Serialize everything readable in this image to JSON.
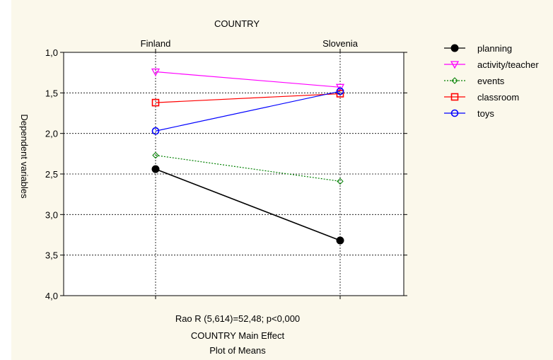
{
  "chart_data": {
    "type": "line",
    "title": "COUNTRY",
    "categories": [
      "Finland",
      "Slovenia"
    ],
    "ylabel": "Dependent variables",
    "ylim": [
      1.0,
      4.0
    ],
    "y_inverted": true,
    "yticks": [
      "1,0",
      "1,5",
      "2,0",
      "2,5",
      "3,0",
      "3,5",
      "4,0"
    ],
    "grid": "horizontal dashed",
    "legend_position": "right",
    "footer": [
      "Rao R (5,614)=52,48; p<0,000",
      "COUNTRY Main Effect",
      "Plot of Means"
    ],
    "series": [
      {
        "name": "planning",
        "values": [
          2.44,
          3.32
        ],
        "color": "#000000",
        "marker": "filled-circle",
        "dash": "solid"
      },
      {
        "name": "activity/teacher",
        "values": [
          1.24,
          1.43
        ],
        "color": "#ff00ff",
        "marker": "triangle-down",
        "dash": "solid"
      },
      {
        "name": "events",
        "values": [
          2.27,
          2.59
        ],
        "color": "#008000",
        "marker": "diamond",
        "dash": "dotted"
      },
      {
        "name": "classroom",
        "values": [
          1.62,
          1.51
        ],
        "color": "#ff0000",
        "marker": "square",
        "dash": "solid"
      },
      {
        "name": "toys",
        "values": [
          1.97,
          1.48
        ],
        "color": "#0000ff",
        "marker": "circle",
        "dash": "solid"
      }
    ]
  }
}
